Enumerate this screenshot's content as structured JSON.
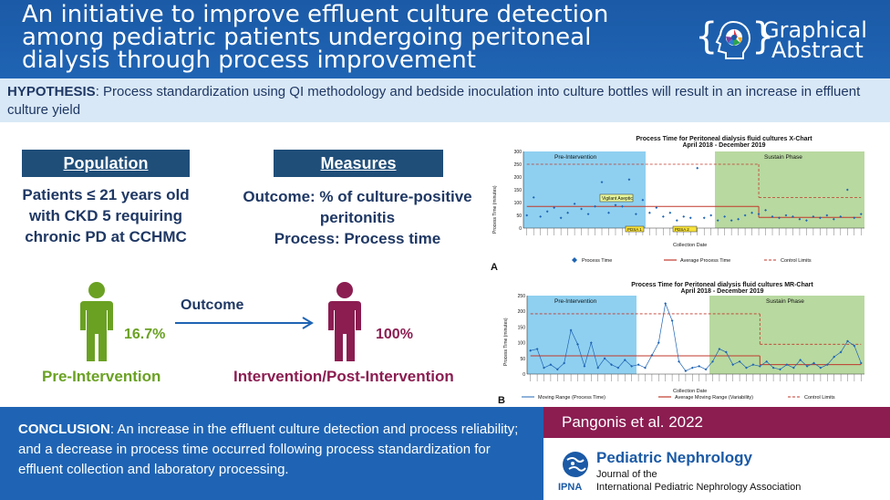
{
  "header": {
    "title": "An initiative to improve effluent culture detection among pediatric patients undergoing peritoneal dialysis through process improvement",
    "logo_line1": "Graphical",
    "logo_line2": "Abstract",
    "logo_icon": "head-gears-icon"
  },
  "hypothesis": {
    "label": "HYPOTHESIS",
    "text": ": Process standardization using QI methodology and bedside inoculation into culture bottles will result in an increase in effluent culture yield"
  },
  "population": {
    "title": "Population",
    "text": "Patients ≤ 21 years old with CKD 5 requiring chronic PD at CCHMC"
  },
  "measures": {
    "title": "Measures",
    "line1": "Outcome: % of culture-positive peritonitis",
    "line2": "Process: Process time"
  },
  "outcome": {
    "label": "Outcome",
    "pre_pct": "16.7%",
    "post_pct": "100%",
    "pre_label": "Pre-Intervention",
    "post_label": "Intervention/Post-Intervention",
    "pre_color": "#6aa123",
    "post_color": "#8b1d51"
  },
  "chart_data": [
    {
      "type": "line",
      "panel_letter": "A",
      "title": "Process Time for Peritoneal dialysis fluid cultures X-Chart",
      "subtitle": "April 2018 - December 2019",
      "xlabel": "Collection Date",
      "ylabel": "Process Time (minutes)",
      "ylim": [
        0,
        300
      ],
      "yticks": [
        0,
        50,
        100,
        150,
        200,
        250,
        300
      ],
      "phase_labels": [
        "Pre-Intervention",
        "Sustain Phase"
      ],
      "annotations": [
        "Vigilant Aseptic",
        "PDSA 1",
        "PDSA 2"
      ],
      "legend": [
        "Process Time",
        "Average Process Time",
        "Control Limits"
      ],
      "series": [
        {
          "name": "Process Time",
          "values": [
            50,
            120,
            45,
            65,
            80,
            40,
            60,
            95,
            75,
            55,
            85,
            180,
            60,
            90,
            85,
            190,
            55,
            110,
            60,
            80,
            45,
            60,
            30,
            45,
            40,
            235,
            40,
            50,
            30,
            45,
            30,
            35,
            50,
            60,
            55,
            70,
            45,
            40,
            50,
            45,
            35,
            30,
            45,
            40,
            50,
            35,
            45,
            150,
            40,
            55
          ]
        }
      ]
    },
    {
      "type": "line",
      "panel_letter": "B",
      "title": "Process Time for Peritoneal dialysis fluid cultures MR-Chart",
      "subtitle": "April 2018 - December 2019",
      "xlabel": "Collection Date",
      "ylabel": "Process Time (minutes)",
      "ylim": [
        0,
        250
      ],
      "yticks": [
        0,
        50,
        100,
        150,
        200,
        250
      ],
      "phase_labels": [
        "Pre-Intervention",
        "Sustain Phase"
      ],
      "legend": [
        "Moving Range (Process Time)",
        "Average Moving Range (Variability)",
        "Control Limits"
      ],
      "series": [
        {
          "name": "Moving Range (Process Time)",
          "values": [
            75,
            80,
            20,
            30,
            15,
            35,
            140,
            95,
            25,
            100,
            20,
            50,
            30,
            20,
            45,
            25,
            30,
            20,
            60,
            100,
            225,
            170,
            40,
            10,
            20,
            25,
            15,
            40,
            80,
            70,
            30,
            40,
            20,
            30,
            25,
            40,
            20,
            15,
            30,
            20,
            45,
            25,
            35,
            20,
            30,
            55,
            70,
            105,
            90,
            35
          ]
        }
      ]
    }
  ],
  "conclusion": {
    "label": "CONCLUSION",
    "text": ": An increase in the effluent culture detection and process reliability; and a decrease in process time occurred following process standardization for effluent collection and laboratory processing."
  },
  "citation": "Pangonis et al. 2022",
  "journal": {
    "name": "Pediatric Nephrology",
    "line1": "Journal of the",
    "line2": "International Pediatric Nephrology Association",
    "org": "IPNA"
  }
}
